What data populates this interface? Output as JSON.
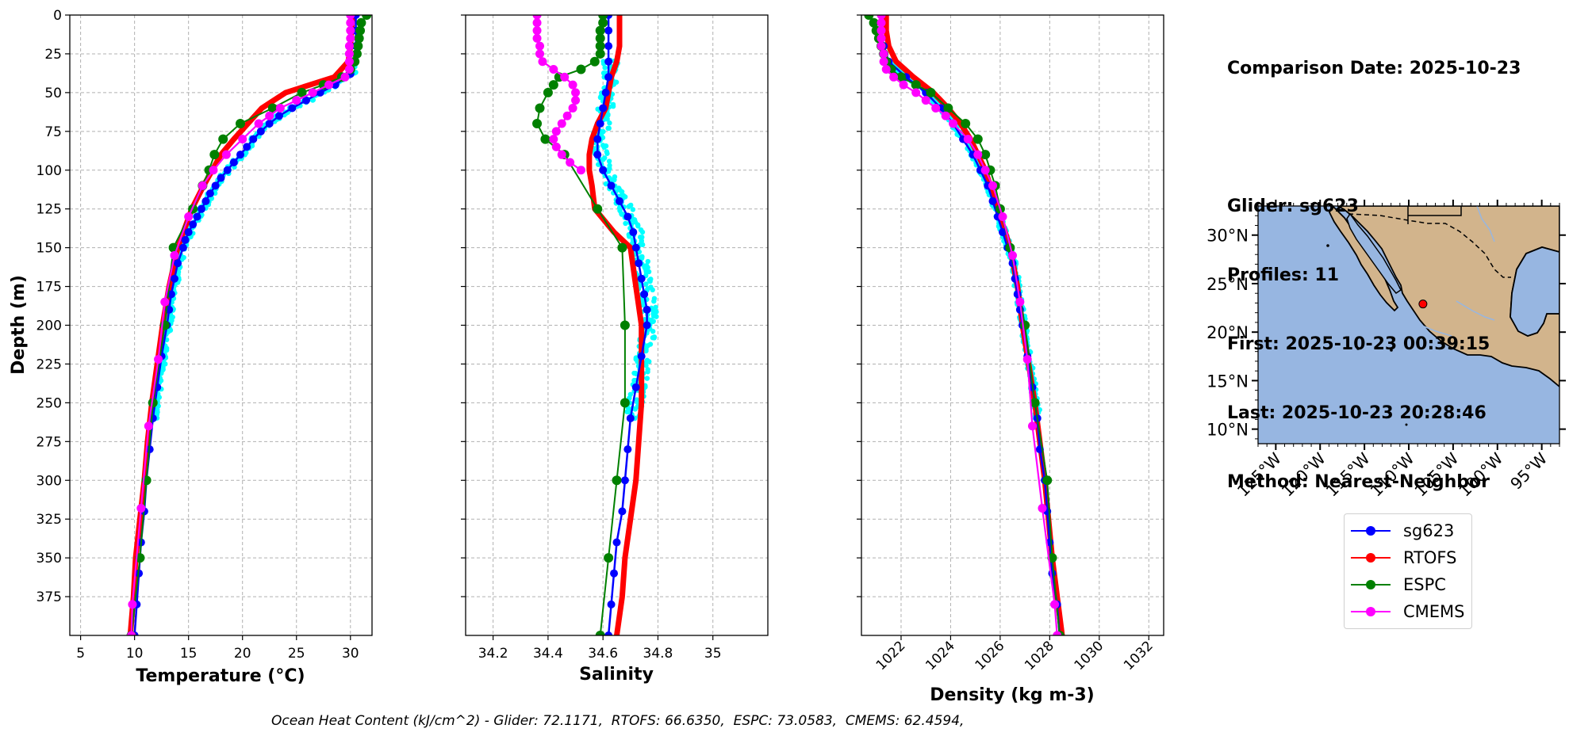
{
  "info": {
    "lines": [
      "Comparison Date: 2025-10-23",
      "",
      "Glider: sg623",
      "Profiles: 11",
      "First: 2025-10-23 00:39:15",
      "Last: 2025-10-23 20:28:46",
      "Method: Nearest-Neighbor"
    ]
  },
  "footer": "Ocean Heat Content (kJ/cm^2) - Glider: 72.1171,  RTOFS: 66.6350,  ESPC: 73.0583,  CMEMS: 62.4594,",
  "colors": {
    "sg623": "#0000ff",
    "RTOFS": "#ff0000",
    "ESPC": "#008000",
    "CMEMS": "#ff00ff",
    "glider_scatter": "#00ffff",
    "ocean": "#97b6e1",
    "land": "#d2b48c"
  },
  "legend": [
    {
      "name": "sg623",
      "color": "#0000ff"
    },
    {
      "name": "RTOFS",
      "color": "#ff0000"
    },
    {
      "name": "ESPC",
      "color": "#008000"
    },
    {
      "name": "CMEMS",
      "color": "#ff00ff"
    }
  ],
  "chart_data": [
    {
      "type": "line",
      "xlabel": "Temperature (°C)",
      "ylabel": "Depth (m)",
      "xlim": [
        4,
        32
      ],
      "ylim": [
        400,
        0
      ],
      "xticks": [
        5,
        10,
        15,
        20,
        25,
        30
      ],
      "yticks": [
        0,
        25,
        50,
        75,
        100,
        125,
        150,
        175,
        200,
        225,
        250,
        275,
        300,
        325,
        350,
        375
      ],
      "grid": true,
      "series": [
        {
          "name": "sg623",
          "depth": [
            0,
            10,
            20,
            30,
            38,
            45,
            50,
            55,
            60,
            65,
            70,
            75,
            80,
            85,
            90,
            95,
            100,
            105,
            110,
            115,
            120,
            125,
            130,
            135,
            140,
            145,
            150,
            160,
            170,
            180,
            190,
            200,
            220,
            240,
            260,
            280,
            300,
            320,
            340,
            360,
            380,
            400
          ],
          "values": [
            30.5,
            30.5,
            30.5,
            30.4,
            30.0,
            28.6,
            27.2,
            25.9,
            24.6,
            23.4,
            22.5,
            21.7,
            21.0,
            20.4,
            19.8,
            19.2,
            18.6,
            18.0,
            17.5,
            17.0,
            16.6,
            16.2,
            15.8,
            15.4,
            15.0,
            14.7,
            14.5,
            14.0,
            13.7,
            13.4,
            13.2,
            13.0,
            12.5,
            12.1,
            11.7,
            11.4,
            11.1,
            10.9,
            10.6,
            10.4,
            10.2,
            10.0
          ]
        },
        {
          "name": "RTOFS",
          "depth": [
            0,
            10,
            20,
            30,
            40,
            50,
            60,
            70,
            80,
            90,
            100,
            110,
            125,
            150,
            175,
            200,
            225,
            250,
            275,
            300,
            325,
            350,
            375,
            400
          ],
          "values": [
            30.2,
            30.1,
            30.0,
            29.8,
            28.5,
            24.0,
            21.8,
            20.5,
            19.2,
            18.0,
            17.2,
            16.4,
            15.3,
            14.0,
            13.2,
            12.6,
            12.1,
            11.6,
            11.2,
            10.9,
            10.5,
            10.1,
            9.9,
            9.6
          ]
        },
        {
          "name": "ESPC",
          "depth": [
            0,
            5,
            10,
            15,
            20,
            25,
            30,
            35,
            40,
            45,
            50,
            60,
            70,
            80,
            90,
            100,
            110,
            125,
            150,
            200,
            250,
            300,
            350,
            400
          ],
          "values": [
            31.5,
            31.0,
            30.9,
            30.8,
            30.7,
            30.6,
            30.4,
            30.0,
            29.2,
            27.5,
            25.5,
            22.8,
            19.8,
            18.2,
            17.4,
            16.9,
            16.3,
            15.4,
            13.6,
            12.8,
            11.7,
            11.1,
            10.5,
            9.7
          ]
        },
        {
          "name": "CMEMS",
          "depth": [
            0,
            5,
            10,
            15,
            20,
            25,
            30,
            35,
            40,
            45,
            50,
            55,
            60,
            65,
            70,
            80,
            90,
            100,
            110,
            130,
            155,
            185,
            222,
            265,
            318,
            380,
            400
          ],
          "values": [
            30.0,
            30.0,
            30.0,
            30.0,
            29.9,
            29.9,
            29.9,
            29.9,
            29.5,
            28.0,
            26.5,
            25.0,
            23.5,
            22.5,
            21.5,
            20.0,
            18.5,
            17.3,
            16.3,
            15.0,
            13.7,
            12.8,
            12.2,
            11.3,
            10.6,
            9.8,
            9.7
          ]
        }
      ]
    },
    {
      "type": "line",
      "xlabel": "Salinity",
      "xlim": [
        34.1,
        35.2
      ],
      "ylim": [
        400,
        0
      ],
      "xticks": [
        34.2,
        34.4,
        34.6,
        34.8,
        35.0
      ],
      "grid": true,
      "series": [
        {
          "name": "sg623",
          "depth": [
            0,
            10,
            20,
            30,
            40,
            50,
            60,
            70,
            80,
            90,
            100,
            110,
            120,
            130,
            140,
            150,
            160,
            170,
            180,
            190,
            200,
            220,
            240,
            260,
            280,
            300,
            320,
            340,
            360,
            380,
            400
          ],
          "values": [
            34.62,
            34.62,
            34.62,
            34.62,
            34.62,
            34.61,
            34.6,
            34.59,
            34.58,
            34.58,
            34.6,
            34.63,
            34.66,
            34.69,
            34.71,
            34.72,
            34.73,
            34.74,
            34.75,
            34.76,
            34.76,
            34.74,
            34.72,
            34.7,
            34.69,
            34.68,
            34.67,
            34.65,
            34.64,
            34.63,
            34.62
          ]
        },
        {
          "name": "RTOFS",
          "depth": [
            0,
            10,
            20,
            30,
            40,
            50,
            60,
            70,
            80,
            90,
            100,
            110,
            125,
            140,
            150,
            175,
            200,
            225,
            250,
            275,
            300,
            325,
            350,
            375,
            400
          ],
          "values": [
            34.66,
            34.66,
            34.66,
            34.65,
            34.63,
            34.62,
            34.61,
            34.58,
            34.56,
            34.55,
            34.55,
            34.56,
            34.57,
            34.64,
            34.7,
            34.72,
            34.74,
            34.74,
            34.74,
            34.73,
            34.72,
            34.7,
            34.68,
            34.67,
            34.65
          ]
        },
        {
          "name": "ESPC",
          "depth": [
            0,
            5,
            10,
            15,
            20,
            25,
            30,
            35,
            40,
            45,
            50,
            60,
            70,
            80,
            90,
            125,
            150,
            200,
            250,
            300,
            350,
            400
          ],
          "values": [
            34.6,
            34.6,
            34.59,
            34.59,
            34.59,
            34.59,
            34.57,
            34.52,
            34.44,
            34.42,
            34.4,
            34.37,
            34.36,
            34.39,
            34.46,
            34.58,
            34.67,
            34.68,
            34.68,
            34.65,
            34.62,
            34.59
          ]
        },
        {
          "name": "CMEMS",
          "depth": [
            0,
            5,
            10,
            15,
            20,
            25,
            30,
            35,
            40,
            45,
            50,
            55,
            60,
            65,
            70,
            75,
            80,
            85,
            90,
            95,
            100
          ],
          "values": [
            34.36,
            34.36,
            34.36,
            34.36,
            34.37,
            34.37,
            34.38,
            34.42,
            34.46,
            34.49,
            34.5,
            34.5,
            34.49,
            34.47,
            34.45,
            34.43,
            34.42,
            34.43,
            34.45,
            34.48,
            34.52
          ]
        }
      ]
    },
    {
      "type": "line",
      "xlabel": "Density (kg m-3)",
      "xlim": [
        1020.4,
        1032.6
      ],
      "ylim": [
        400,
        0
      ],
      "xticks": [
        1022,
        1024,
        1026,
        1028,
        1030,
        1032
      ],
      "grid": true,
      "series": [
        {
          "name": "sg623",
          "depth": [
            0,
            10,
            20,
            30,
            40,
            50,
            60,
            70,
            80,
            90,
            100,
            110,
            120,
            130,
            140,
            150,
            160,
            170,
            180,
            190,
            200,
            220,
            240,
            260,
            280,
            300,
            320,
            340,
            360,
            380,
            400
          ],
          "values": [
            1021.2,
            1021.2,
            1021.3,
            1021.5,
            1022.2,
            1023.0,
            1023.6,
            1024.1,
            1024.5,
            1024.9,
            1025.2,
            1025.5,
            1025.7,
            1025.9,
            1026.1,
            1026.3,
            1026.5,
            1026.6,
            1026.7,
            1026.8,
            1026.9,
            1027.1,
            1027.3,
            1027.5,
            1027.6,
            1027.8,
            1027.9,
            1028.0,
            1028.1,
            1028.3,
            1028.4
          ]
        },
        {
          "name": "RTOFS",
          "depth": [
            0,
            10,
            20,
            30,
            40,
            50,
            60,
            70,
            80,
            90,
            100,
            125,
            150,
            175,
            200,
            250,
            300,
            350,
            400
          ],
          "values": [
            1021.4,
            1021.4,
            1021.5,
            1021.8,
            1022.5,
            1023.3,
            1023.9,
            1024.4,
            1024.8,
            1025.1,
            1025.4,
            1025.9,
            1026.4,
            1026.7,
            1026.9,
            1027.4,
            1027.8,
            1028.1,
            1028.5
          ]
        },
        {
          "name": "ESPC",
          "depth": [
            0,
            5,
            10,
            15,
            20,
            25,
            30,
            35,
            40,
            45,
            50,
            60,
            70,
            80,
            90,
            100,
            110,
            125,
            150,
            200,
            250,
            300,
            350,
            400
          ],
          "values": [
            1020.7,
            1020.9,
            1021.0,
            1021.1,
            1021.2,
            1021.3,
            1021.4,
            1021.6,
            1022.0,
            1022.6,
            1023.2,
            1023.9,
            1024.6,
            1025.1,
            1025.4,
            1025.6,
            1025.8,
            1026.0,
            1026.4,
            1027.0,
            1027.4,
            1027.9,
            1028.1,
            1028.4
          ]
        },
        {
          "name": "CMEMS",
          "depth": [
            0,
            5,
            10,
            15,
            20,
            25,
            30,
            35,
            40,
            45,
            50,
            55,
            60,
            65,
            70,
            80,
            90,
            100,
            110,
            130,
            155,
            185,
            222,
            265,
            318,
            380,
            400
          ],
          "values": [
            1021.2,
            1021.2,
            1021.2,
            1021.2,
            1021.2,
            1021.3,
            1021.3,
            1021.4,
            1021.7,
            1022.1,
            1022.6,
            1023.0,
            1023.4,
            1023.8,
            1024.1,
            1024.7,
            1025.1,
            1025.4,
            1025.7,
            1026.1,
            1026.5,
            1026.8,
            1027.1,
            1027.3,
            1027.7,
            1028.2,
            1028.3
          ]
        }
      ]
    }
  ],
  "map": {
    "lon_range": [
      -127,
      -93
    ],
    "lat_range": [
      8.5,
      33
    ],
    "lon_ticks": [
      -125,
      -120,
      -115,
      -110,
      -105,
      -100,
      -95
    ],
    "lon_tick_labels": [
      "125°W",
      "120°W",
      "115°W",
      "110°W",
      "105°W",
      "100°W",
      "95°W"
    ],
    "lat_ticks": [
      10,
      15,
      20,
      25,
      30
    ],
    "lat_tick_labels": [
      "10°N",
      "15°N",
      "20°N",
      "25°N",
      "30°N"
    ],
    "glider_location": {
      "lon": -108.4,
      "lat": 22.9
    }
  }
}
